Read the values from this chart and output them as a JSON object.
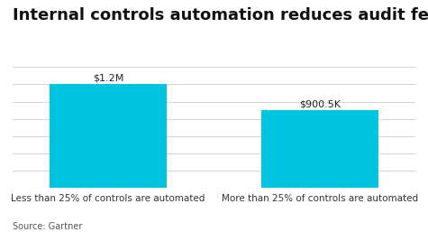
{
  "title": "Internal controls automation reduces audit fees",
  "categories": [
    "Less than 25% of controls are automated",
    "More than 25% of controls are automated"
  ],
  "values": [
    1.2,
    0.9005
  ],
  "bar_labels": [
    "$1.2M",
    "$900.5K"
  ],
  "bar_color": "#00c5e0",
  "background_color": "#ffffff",
  "ylim": [
    0,
    1.45
  ],
  "yticks": [
    0,
    0.2,
    0.4,
    0.6,
    0.8,
    1.0,
    1.2,
    1.4
  ],
  "source_text": "Source: Gartner",
  "title_fontsize": 13,
  "label_fontsize": 7.5,
  "source_fontsize": 7,
  "bar_label_fontsize": 8
}
